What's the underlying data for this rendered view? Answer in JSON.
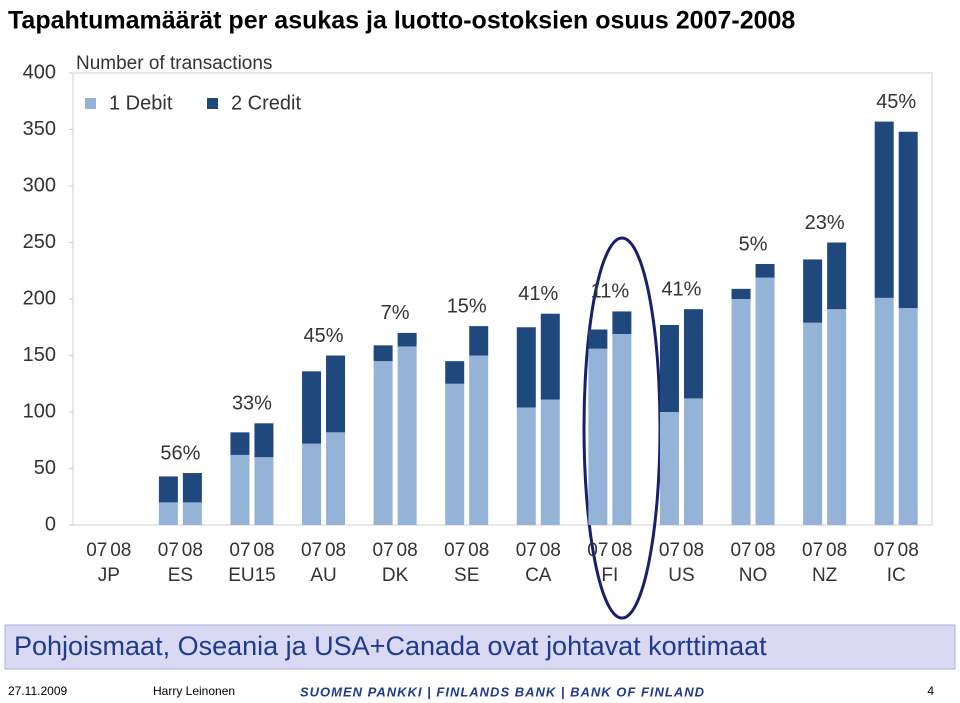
{
  "chart_data": {
    "type": "stacked_bar",
    "title": "Tapahtumamäärät per asukas ja luotto-ostoksien osuus 2007-2008",
    "y_label": "Number of transactions",
    "groups": [
      "JP",
      "ES",
      "EU15",
      "AU",
      "DK",
      "SE",
      "CA",
      "FI",
      "US",
      "NO",
      "NZ",
      "IC"
    ],
    "subcategories": [
      "07",
      "08"
    ],
    "group_labels": [
      null,
      "56%",
      "33%",
      "45%",
      "7%",
      "15%",
      "41%",
      "11%",
      "41%",
      "5%",
      "23%",
      "45%"
    ],
    "series": [
      {
        "name": "1 Debit",
        "color": "#95b3d7",
        "values": [
          null,
          null,
          20,
          20,
          62,
          60,
          72,
          82,
          145,
          158,
          125,
          150,
          104,
          111,
          156,
          169,
          100,
          112,
          200,
          219,
          179,
          191,
          201,
          192
        ]
      },
      {
        "name": "2 Credit",
        "color": "#1f497d",
        "values": [
          null,
          null,
          23,
          26,
          20,
          30,
          64,
          68,
          14,
          12,
          20,
          26,
          71,
          76,
          17,
          20,
          77,
          79,
          9,
          12,
          56,
          59,
          156,
          156
        ]
      }
    ],
    "ylim": [
      0,
      400
    ],
    "yticks": [
      0,
      50,
      100,
      150,
      200,
      250,
      300,
      350,
      400
    ],
    "grid": false,
    "legend": "top-left"
  },
  "banner": "Pohjoismaat, Oseania ja USA+Canada ovat johtavat korttimaat",
  "footer": {
    "date": "27.11.2009",
    "author": "Harry Leinonen",
    "organization": "SUOMEN PANKKI | FINLANDS BANK | BANK OF FINLAND",
    "page": "4"
  }
}
